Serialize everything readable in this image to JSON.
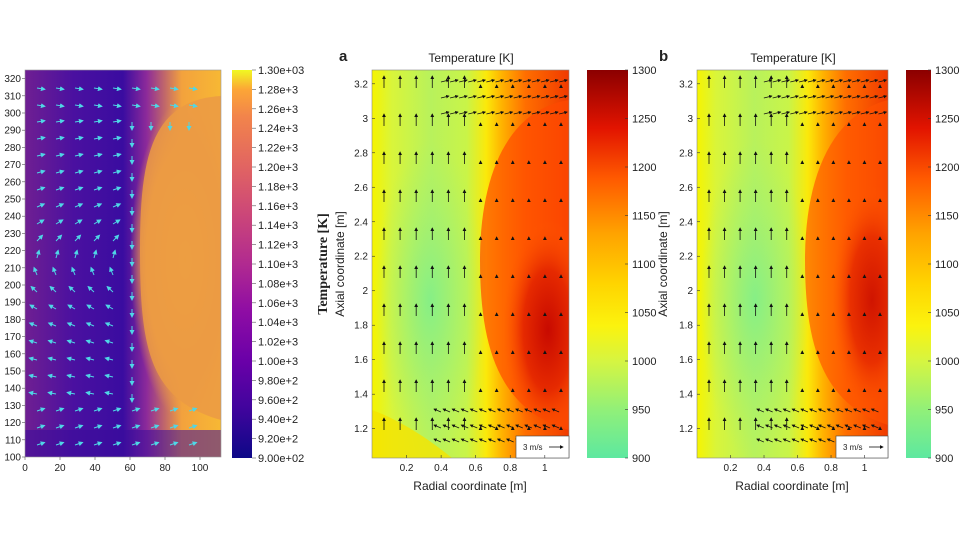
{
  "chart_data": [
    {
      "type": "heatmap",
      "subtype": "temperature field with velocity vectors",
      "colormap": "plasma",
      "xlim": [
        0,
        112
      ],
      "ylim": [
        100,
        325
      ],
      "xticks": [
        "0",
        "20",
        "40",
        "60",
        "80",
        "100"
      ],
      "yticks": [
        "100",
        "110",
        "120",
        "130",
        "140",
        "150",
        "160",
        "170",
        "180",
        "190",
        "200",
        "210",
        "220",
        "230",
        "240",
        "250",
        "260",
        "270",
        "280",
        "290",
        "300",
        "310",
        "320"
      ],
      "colorbar": {
        "label": "Temperature [K]",
        "range": [
          900,
          1300
        ],
        "ticks": [
          "1.30e+03",
          "1.28e+3",
          "1.26e+3",
          "1.24e+3",
          "1.22e+3",
          "1.20e+3",
          "1.18e+3",
          "1.16e+3",
          "1.14e+3",
          "1.12e+3",
          "1.10e+3",
          "1.08e+3",
          "1.06e+3",
          "1.04e+3",
          "1.02e+3",
          "1.00e+3",
          "9.80e+2",
          "9.60e+2",
          "9.40e+2",
          "9.20e+2",
          "9.00e+02"
        ]
      },
      "vector_color": "#4fd6e6"
    },
    {
      "type": "heatmap",
      "subtype": "temperature field with velocity vectors",
      "panel_label": "a",
      "title": "Temperature [K]",
      "xlabel": "Radial coordinate [m]",
      "ylabel": "Axial coordinate [m]",
      "xlim": [
        0,
        1.14
      ],
      "ylim": [
        1.03,
        3.28
      ],
      "xticks": [
        "0.2",
        "0.4",
        "0.6",
        "0.8",
        "1"
      ],
      "yticks": [
        "1.2",
        "1.4",
        "1.6",
        "1.8",
        "2",
        "2.2",
        "2.4",
        "2.6",
        "2.8",
        "3",
        "3.2"
      ],
      "colorbar": {
        "range": [
          900,
          1300
        ],
        "ticks": [
          "1300",
          "1250",
          "1200",
          "1150",
          "1100",
          "1050",
          "1000",
          "950",
          "900"
        ]
      },
      "reference_vector_label": "3 m/s",
      "vector_color": "#111111"
    },
    {
      "type": "heatmap",
      "subtype": "temperature field with velocity vectors",
      "panel_label": "b",
      "title": "Temperature [K]",
      "xlabel": "Radial coordinate [m]",
      "ylabel": "Axial coordinate [m]",
      "xlim": [
        0,
        1.14
      ],
      "ylim": [
        1.03,
        3.28
      ],
      "xticks": [
        "0.2",
        "0.4",
        "0.6",
        "0.8",
        "1"
      ],
      "yticks": [
        "1.2",
        "1.4",
        "1.6",
        "1.8",
        "2",
        "2.2",
        "2.4",
        "2.6",
        "2.8",
        "3",
        "3.2"
      ],
      "colorbar": {
        "range": [
          900,
          1300
        ],
        "ticks": [
          "1300",
          "1250",
          "1200",
          "1150",
          "1100",
          "1050",
          "1000",
          "950",
          "900"
        ]
      },
      "reference_vector_label": "3 m/s",
      "vector_color": "#111111"
    }
  ]
}
